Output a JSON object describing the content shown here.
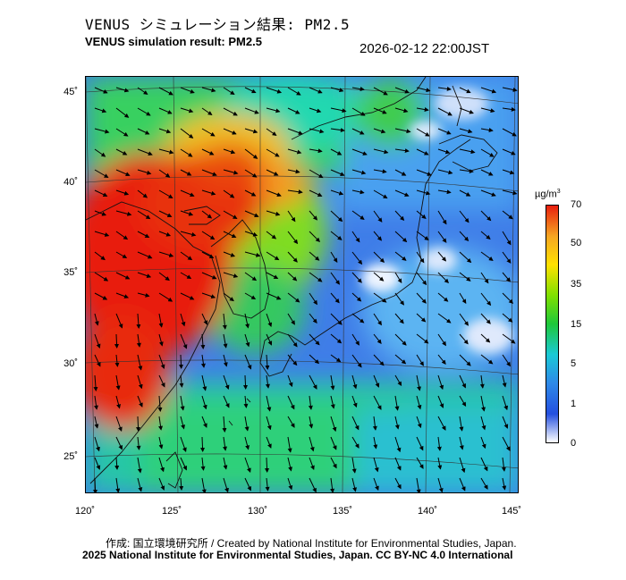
{
  "header": {
    "title_jp": "VENUS シミュレーション結果: PM2.5",
    "title_en": "VENUS simulation result: PM2.5",
    "timestamp": "2026-02-12 22:00JST"
  },
  "map": {
    "variable": "PM2.5 concentration with wind vectors",
    "lat_labels": [
      "45˚",
      "40˚",
      "35˚",
      "30˚",
      "25˚"
    ],
    "lon_labels": [
      "120˚",
      "125˚",
      "130˚",
      "135˚",
      "140˚",
      "145˚"
    ]
  },
  "colorbar": {
    "unit": "µg/m",
    "unit_sup": "3",
    "ticks": [
      "70",
      "50",
      "35",
      "15",
      "5",
      "1",
      "0"
    ],
    "colors": [
      "#e81e0e",
      "#f5a623",
      "#ffe100",
      "#7fe000",
      "#1ec83a",
      "#1ac9d6",
      "#2e8ae8",
      "#2550e0",
      "#ffffff"
    ]
  },
  "footer": {
    "credit_line1": "作成: 国立環境研究所 / Created by National Institute for Environmental Studies, Japan.",
    "credit_line2": "2025 National Institute for Environmental Studies, Japan. CC BY-NC 4.0 International"
  }
}
